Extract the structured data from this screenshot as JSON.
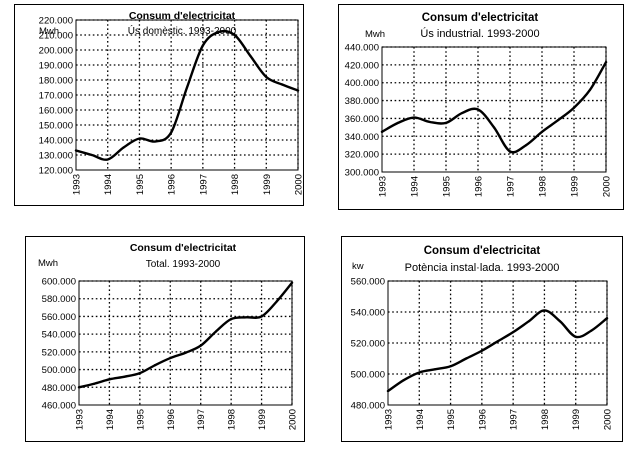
{
  "chart_data": [
    {
      "type": "line",
      "title": "Consum d'electricitat",
      "subtitle": "Ús domèstic. 1993-2000",
      "ylabel": "Mwh",
      "ylim": [
        120000,
        220000
      ],
      "y_ticks": [
        "120.000",
        "130.000",
        "140.000",
        "150.000",
        "160.000",
        "170.000",
        "180.000",
        "190.000",
        "200.000",
        "210.000",
        "220.000"
      ],
      "y_tick_values": [
        120000,
        130000,
        140000,
        150000,
        160000,
        170000,
        180000,
        190000,
        200000,
        210000,
        220000
      ],
      "x_ticks": [
        "1993",
        "1994",
        "1995",
        "1996",
        "1997",
        "1998",
        "1999",
        "2000"
      ],
      "xlim": [
        1993,
        2000
      ],
      "grid": true,
      "x": [
        1993,
        1993.5,
        1994,
        1994.5,
        1995,
        1995.5,
        1996,
        1996.5,
        1997,
        1997.5,
        1998,
        1998.5,
        1999,
        1999.5,
        2000
      ],
      "values": [
        133000,
        130000,
        127000,
        135000,
        141000,
        139000,
        145000,
        175000,
        203000,
        212000,
        210000,
        196000,
        182000,
        177000,
        173000
      ]
    },
    {
      "type": "line",
      "title": "Consum d'electricitat",
      "subtitle": "Ús industrial. 1993-2000",
      "ylabel": "Mwh",
      "ylim": [
        300000,
        440000
      ],
      "y_ticks": [
        "300.000",
        "320.000",
        "340.000",
        "360.000",
        "380.000",
        "400.000",
        "420.000",
        "440.000"
      ],
      "y_tick_values": [
        300000,
        320000,
        340000,
        360000,
        380000,
        400000,
        420000,
        440000
      ],
      "x_ticks": [
        "1993",
        "1994",
        "1995",
        "1996",
        "1997",
        "1998",
        "1999",
        "2000"
      ],
      "xlim": [
        1993,
        2000
      ],
      "grid": true,
      "x": [
        1993,
        1993.5,
        1994,
        1994.5,
        1995,
        1995.5,
        1996,
        1996.5,
        1997,
        1997.5,
        1998,
        1998.5,
        1999,
        1999.5,
        2000
      ],
      "values": [
        345000,
        355000,
        361000,
        356000,
        355000,
        366000,
        370000,
        350000,
        323000,
        330000,
        345000,
        358000,
        372000,
        392000,
        423000
      ]
    },
    {
      "type": "line",
      "title": "Consum d'electricitat",
      "subtitle": "Total. 1993-2000",
      "ylabel": "Mwh",
      "ylim": [
        460000,
        600000
      ],
      "y_ticks": [
        "460.000",
        "480.000",
        "500.000",
        "520.000",
        "540.000",
        "560.000",
        "580.000",
        "600.000"
      ],
      "y_tick_values": [
        460000,
        480000,
        500000,
        520000,
        540000,
        560000,
        580000,
        600000
      ],
      "x_ticks": [
        "1993",
        "1994",
        "1995",
        "1996",
        "1997",
        "1998",
        "1999",
        "2000"
      ],
      "xlim": [
        1993,
        2000
      ],
      "grid": true,
      "x": [
        1993,
        1993.5,
        1994,
        1994.5,
        1995,
        1995.5,
        1996,
        1996.5,
        1997,
        1997.5,
        1998,
        1998.5,
        1999,
        1999.5,
        2000
      ],
      "values": [
        480000,
        484000,
        489000,
        492000,
        496000,
        505000,
        513000,
        519000,
        527000,
        543000,
        557000,
        559000,
        560000,
        577000,
        598000
      ]
    },
    {
      "type": "line",
      "title": "Consum d'electricitat",
      "subtitle": "Potència instal·lada. 1993-2000",
      "ylabel": "kw",
      "ylim": [
        480000,
        560000
      ],
      "y_ticks": [
        "480.000",
        "500.000",
        "520.000",
        "540.000",
        "560.000"
      ],
      "y_tick_values": [
        480000,
        500000,
        520000,
        540000,
        560000
      ],
      "x_ticks": [
        "1993",
        "1994",
        "1995",
        "1996",
        "1997",
        "1998",
        "1999",
        "2000"
      ],
      "xlim": [
        1993,
        2000
      ],
      "grid": true,
      "x": [
        1993,
        1993.5,
        1994,
        1994.5,
        1995,
        1995.5,
        1996,
        1996.5,
        1997,
        1997.5,
        1998,
        1998.5,
        1999,
        1999.5,
        2000
      ],
      "values": [
        489000,
        496000,
        501000,
        503000,
        505000,
        510000,
        515000,
        521000,
        527000,
        534000,
        541000,
        534000,
        524000,
        528000,
        536000
      ]
    }
  ]
}
